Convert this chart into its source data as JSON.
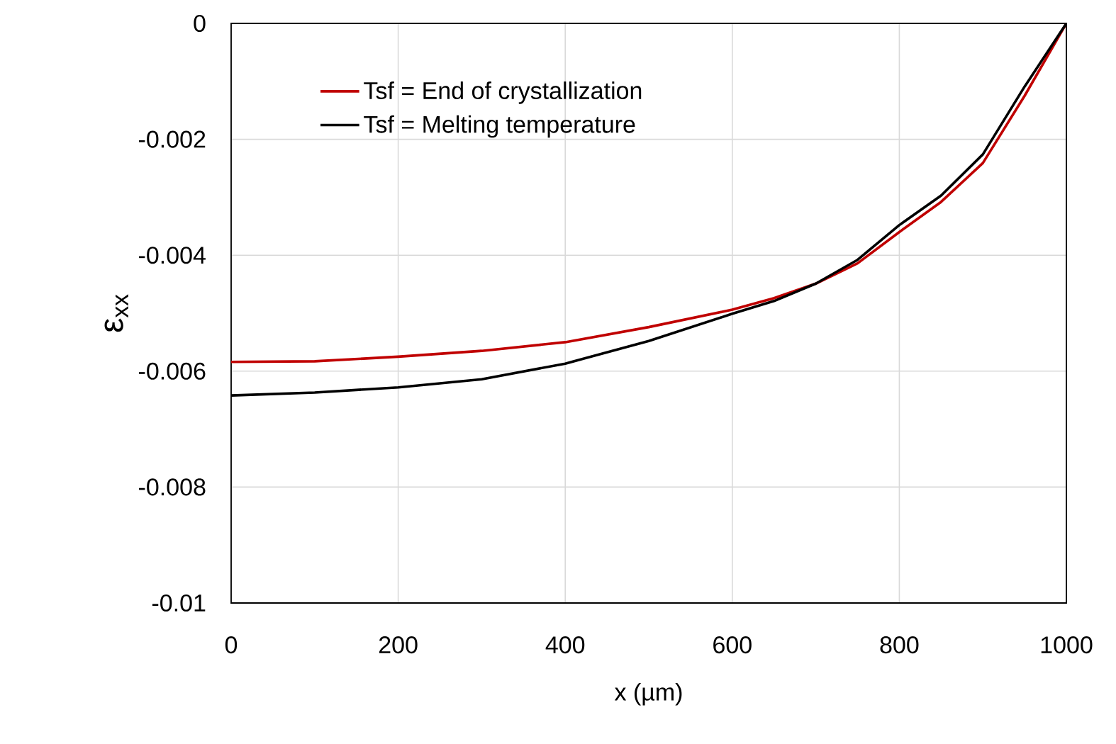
{
  "chart_data": {
    "type": "line",
    "xlabel": "x (µm)",
    "ylabel": "ε$_{xx}$",
    "x": [
      0,
      100,
      200,
      300,
      400,
      500,
      600,
      650,
      700,
      750,
      800,
      850,
      900,
      950,
      1000
    ],
    "series": [
      {
        "name": "Tsf = End of crystallization",
        "color": "#c00000",
        "values": [
          -0.00584,
          -0.00583,
          -0.00575,
          -0.00565,
          -0.0055,
          -0.00524,
          -0.00494,
          -0.00474,
          -0.00449,
          -0.00414,
          -0.0036,
          -0.00308,
          -0.00241,
          -0.00125,
          0
        ]
      },
      {
        "name": "Tsf = Melting temperature",
        "color": "#000000",
        "values": [
          -0.00642,
          -0.00637,
          -0.00628,
          -0.00614,
          -0.00587,
          -0.00548,
          -0.00501,
          -0.00479,
          -0.00449,
          -0.00408,
          -0.00348,
          -0.00297,
          -0.00226,
          -0.00109,
          0
        ]
      }
    ],
    "xlim": [
      0,
      1000
    ],
    "xticks": [
      0,
      200,
      400,
      600,
      800,
      1000
    ],
    "ylim": [
      -0.01,
      0
    ],
    "yticks": [
      -0.01,
      -0.008,
      -0.006,
      -0.004,
      -0.002,
      0
    ],
    "grid": true,
    "legend": "top left",
    "marker": "none",
    "line_style": "solid"
  }
}
